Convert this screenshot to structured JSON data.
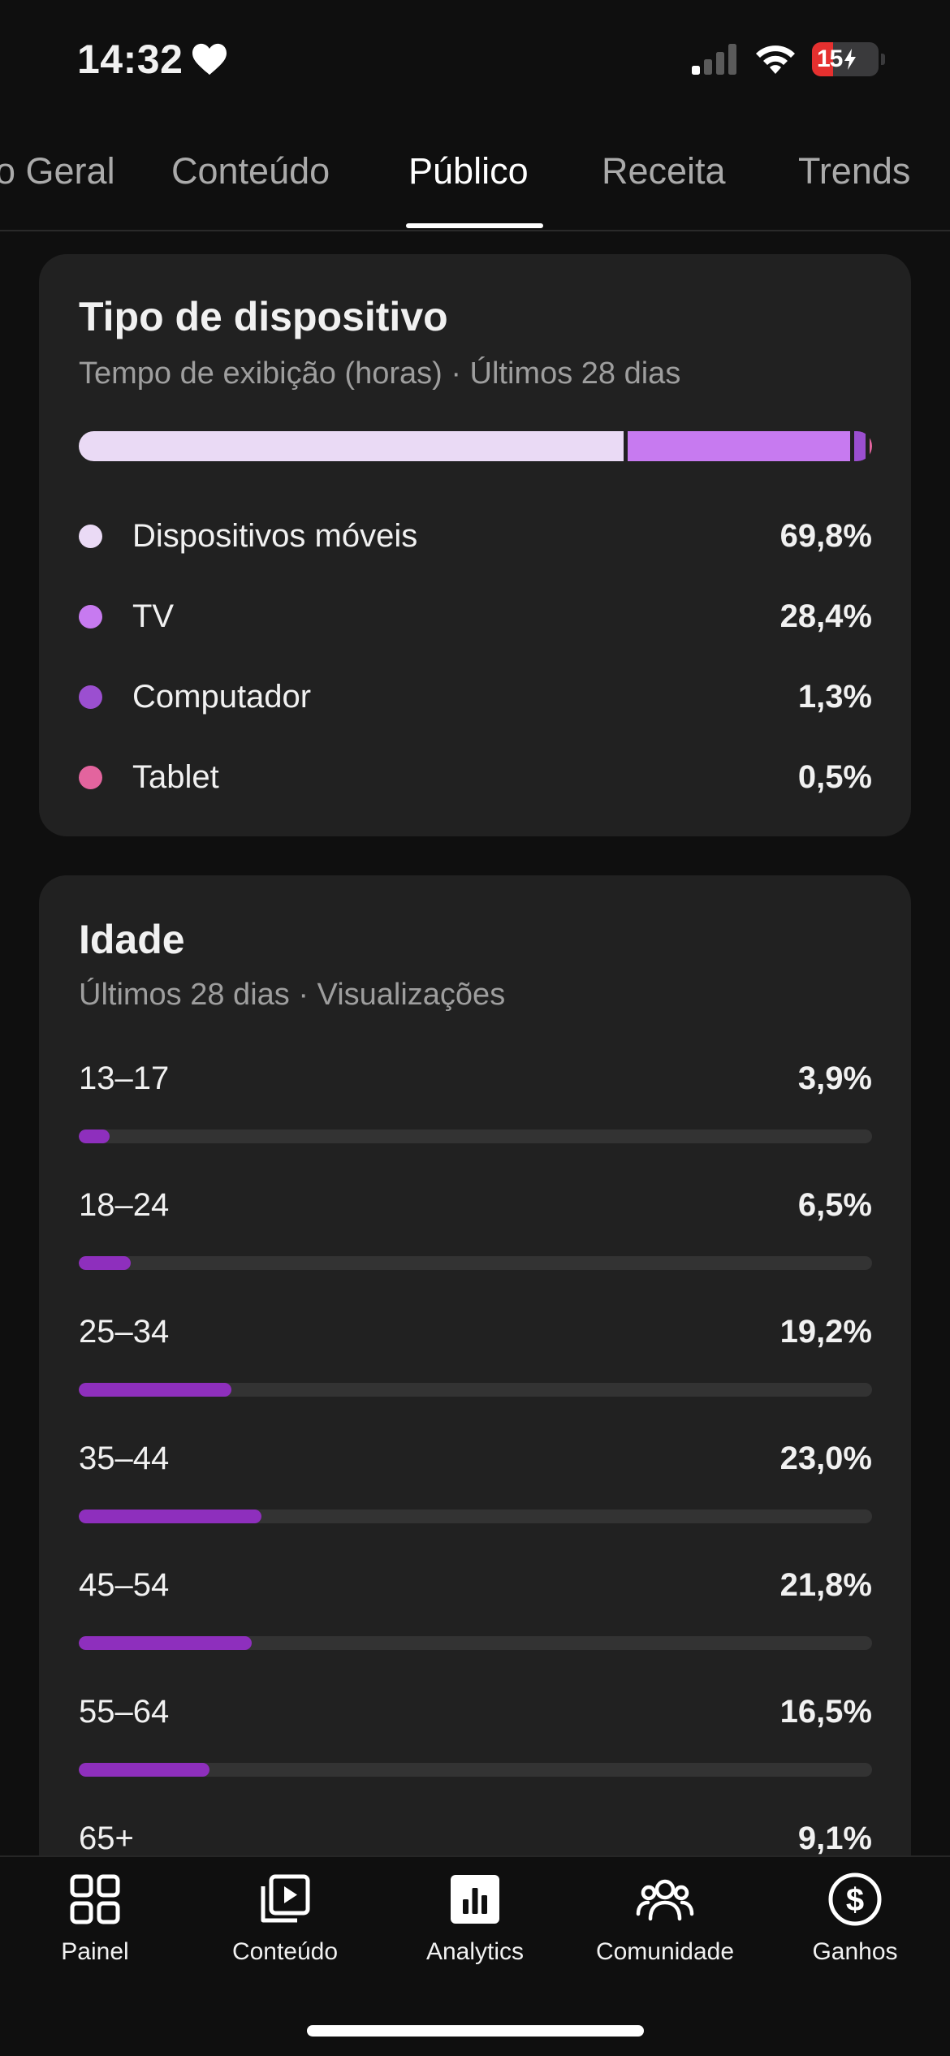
{
  "status_bar": {
    "time": "14:32",
    "battery_level": "15",
    "battery_color": "#e5302f"
  },
  "tabs": [
    {
      "label": "Visão Geral",
      "visible_text": "o Geral",
      "active": false
    },
    {
      "label": "Conteúdo",
      "active": false
    },
    {
      "label": "Público",
      "active": true
    },
    {
      "label": "Receita",
      "active": false
    },
    {
      "label": "Trends",
      "active": false
    }
  ],
  "device_card": {
    "title": "Tipo de dispositivo",
    "subtitle": "Tempo de exibição (horas) · Últimos 28 dias",
    "items": [
      {
        "label": "Dispositivos móveis",
        "value_text": "69,8%",
        "share": 69.8,
        "color": "#eadaf5"
      },
      {
        "label": "TV",
        "value_text": "28,4%",
        "share": 28.4,
        "color": "#c77af0"
      },
      {
        "label": "Computador",
        "value_text": "1,3%",
        "share": 1.3,
        "color": "#9b4fd0"
      },
      {
        "label": "Tablet",
        "value_text": "0,5%",
        "share": 0.5,
        "color": "#e3649e"
      }
    ]
  },
  "age_card": {
    "title": "Idade",
    "subtitle": "Últimos 28 dias · Visualizações",
    "bar_color": "#8e2fbd",
    "track_color": "#333333",
    "rows": [
      {
        "label": "13–17",
        "value_text": "3,9%",
        "share": 3.9
      },
      {
        "label": "18–24",
        "value_text": "6,5%",
        "share": 6.5
      },
      {
        "label": "25–34",
        "value_text": "19,2%",
        "share": 19.2
      },
      {
        "label": "35–44",
        "value_text": "23,0%",
        "share": 23.0
      },
      {
        "label": "45–54",
        "value_text": "21,8%",
        "share": 21.8
      },
      {
        "label": "55–64",
        "value_text": "16,5%",
        "share": 16.5
      },
      {
        "label": "65+",
        "value_text": "9,1%",
        "share": 9.1
      }
    ]
  },
  "bottom_nav": [
    {
      "label": "Painel",
      "icon": "dashboard-grid-icon"
    },
    {
      "label": "Conteúdo",
      "icon": "content-play-icon"
    },
    {
      "label": "Analytics",
      "icon": "analytics-bars-icon",
      "active": true
    },
    {
      "label": "Comunidade",
      "icon": "community-people-icon"
    },
    {
      "label": "Ganhos",
      "icon": "earnings-dollar-icon"
    }
  ]
}
